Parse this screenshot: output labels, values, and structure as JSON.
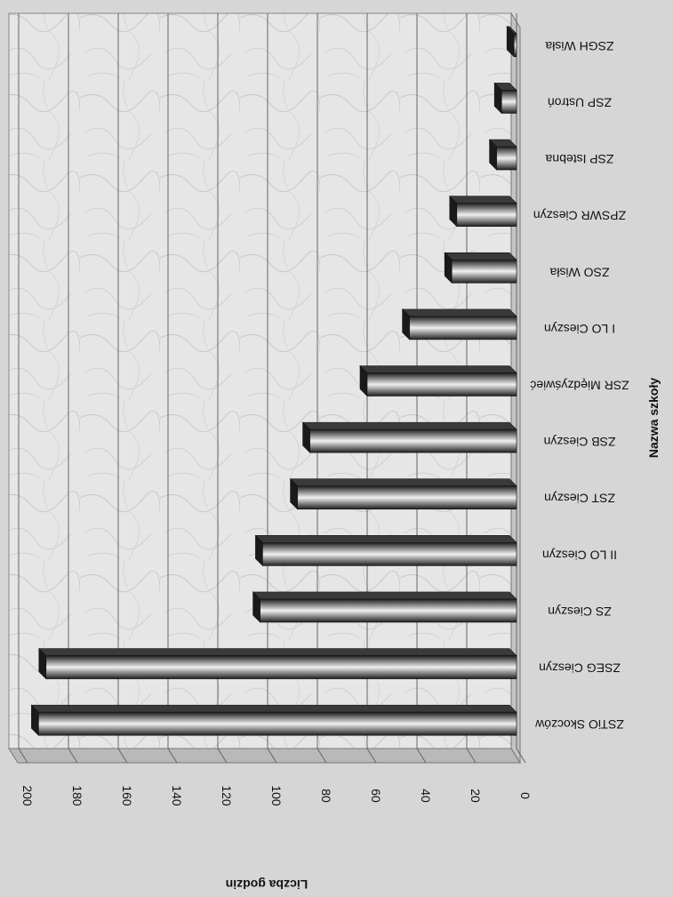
{
  "chart_data": {
    "type": "bar",
    "orientation": "horizontal-3d",
    "rotation": "180deg",
    "xlabel": "Nazwa szkoły",
    "ylabel": "Liczba godzin",
    "ylim": [
      0,
      200
    ],
    "yticks": [
      0,
      20,
      40,
      60,
      80,
      100,
      120,
      140,
      160,
      180,
      200
    ],
    "categories": [
      "ZSTiO Skoczów",
      "ZSEG Cieszyn",
      "ZS Cieszyn",
      "II LO Cieszyn",
      "ZST Cieszyn",
      "ZSB Cieszyn",
      "ZSR Międzyświeć",
      "I LO Cieszyn",
      "ZSO Wisła",
      "ZPSWR Cieszyn",
      "ZSP Istebna",
      "ZSP Ustroń",
      "ZSGH Wisła"
    ],
    "values": [
      192,
      189,
      103,
      102,
      88,
      83,
      60,
      43,
      26,
      24,
      8,
      6,
      1
    ],
    "grid": true,
    "colors": {
      "bar_dark": "#2a2a2a",
      "bar_light": "#f2f2f2",
      "wall": "#e4e4e4",
      "floor": "#b9b9b9",
      "background": "#d6d6d6"
    }
  }
}
